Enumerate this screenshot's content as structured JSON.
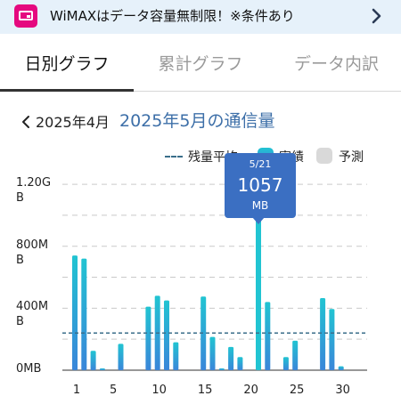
{
  "banner": {
    "text": "WiMAXはデータ容量無制限！※条件あり",
    "icon": "sim-card-icon",
    "chevron_icon": "chevron-right-icon"
  },
  "tabs": [
    {
      "label": "日別グラフ",
      "active": true
    },
    {
      "label": "累計グラフ",
      "active": false
    },
    {
      "label": "データ内訳",
      "active": false
    }
  ],
  "month_nav": {
    "prev_label": "2025年4月",
    "current_label": "2025年5月の通信量"
  },
  "legend": {
    "average_label": "残量平均",
    "actual_label": "実績",
    "forecast_label": "予測"
  },
  "tooltip": {
    "date": "5/21",
    "value": "1057",
    "unit": "MB"
  },
  "colors": {
    "accent": "#3d6fa8",
    "bar_top": "#21c4d2",
    "bar_bottom": "#3a86d9",
    "forecast": "#d9d9d9",
    "tooltip_bg": "#3b6fc2",
    "banner_bg": "#e6f1fa",
    "brand_pink": "#e5097f"
  },
  "chart_data": {
    "type": "bar",
    "x": [
      1,
      2,
      3,
      4,
      5,
      6,
      7,
      8,
      9,
      10,
      11,
      12,
      13,
      14,
      15,
      16,
      17,
      18,
      19,
      20,
      21,
      22,
      23,
      24,
      25,
      26,
      27,
      28,
      29,
      30,
      31
    ],
    "values": [
      740,
      720,
      125,
      10,
      0,
      170,
      0,
      0,
      410,
      480,
      450,
      180,
      0,
      0,
      475,
      215,
      10,
      150,
      85,
      0,
      1057,
      440,
      0,
      85,
      190,
      0,
      0,
      465,
      395,
      25,
      0
    ],
    "series": [
      {
        "name": "実績",
        "values": [
          740,
          720,
          125,
          10,
          0,
          170,
          0,
          0,
          410,
          480,
          450,
          180,
          0,
          0,
          475,
          215,
          10,
          150,
          85,
          0,
          1057,
          440,
          0,
          85,
          190,
          0,
          0,
          465,
          395,
          25,
          0
        ]
      }
    ],
    "average_line": 240,
    "ylim": [
      0,
      1350
    ],
    "yticks": [
      {
        "value": 0,
        "label": [
          "0MB"
        ]
      },
      {
        "value": 400,
        "label": [
          "400M",
          "B"
        ]
      },
      {
        "value": 800,
        "label": [
          "800M",
          "B"
        ]
      },
      {
        "value": 1200,
        "label": [
          "1.20G",
          "B"
        ]
      }
    ],
    "xticks": [
      1,
      5,
      10,
      15,
      20,
      25,
      30
    ],
    "grid": true,
    "highlight_index": 20,
    "legend_position": "top-right"
  }
}
